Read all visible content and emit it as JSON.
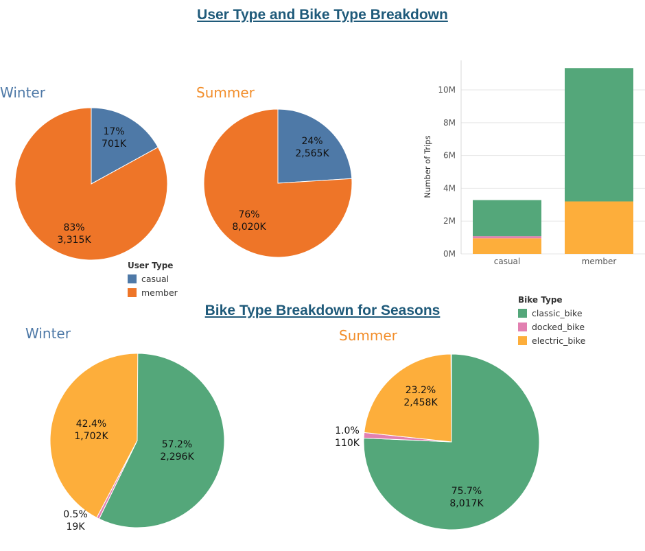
{
  "titles": {
    "main": "User Type and Bike Type Breakdown",
    "sub": "Bike Type Breakdown for Seasons"
  },
  "colors": {
    "casual": "#4e79a7",
    "member": "#ee7528",
    "classic_bike": "#54a77a",
    "docked_bike": "#e280b1",
    "electric_bike": "#fdae3b",
    "title": "#1f5a7a",
    "winter_label": "#4e79a7",
    "summer_label": "#f28e2b"
  },
  "legends": {
    "user_type": {
      "title": "User Type",
      "items": [
        "casual",
        "member"
      ]
    },
    "bike_type": {
      "title": "Bike Type",
      "items": [
        "classic_bike",
        "docked_bike",
        "electric_bike"
      ]
    }
  },
  "chart_data": [
    {
      "type": "pie",
      "title": "Winter",
      "slices": [
        {
          "name": "casual",
          "share": 0.17,
          "pct_label": "17%",
          "value_label": "701K",
          "value": 701000
        },
        {
          "name": "member",
          "share": 0.83,
          "pct_label": "83%",
          "value_label": "3,315K",
          "value": 3315000
        }
      ]
    },
    {
      "type": "pie",
      "title": "Summer",
      "slices": [
        {
          "name": "casual",
          "share": 0.24,
          "pct_label": "24%",
          "value_label": "2,565K",
          "value": 2565000
        },
        {
          "name": "member",
          "share": 0.76,
          "pct_label": "76%",
          "value_label": "8,020K",
          "value": 8020000
        }
      ]
    },
    {
      "type": "bar",
      "stacked": true,
      "categories": [
        "casual",
        "member"
      ],
      "ylabel": "Number of Trips",
      "xlabel": "",
      "ylim": [
        0,
        11800000
      ],
      "y_ticks": [
        0,
        2000000,
        4000000,
        6000000,
        8000000,
        10000000
      ],
      "y_tick_labels": [
        "0M",
        "2M",
        "4M",
        "6M",
        "8M",
        "10M"
      ],
      "series": [
        {
          "name": "electric_bike",
          "values": [
            950000,
            3200000
          ]
        },
        {
          "name": "docked_bike",
          "values": [
            130000,
            0
          ]
        },
        {
          "name": "classic_bike",
          "values": [
            2200000,
            8130000
          ]
        }
      ],
      "grid": true
    },
    {
      "type": "pie",
      "title": "Winter",
      "slices": [
        {
          "name": "classic_bike",
          "share": 0.572,
          "pct_label": "57.2%",
          "value_label": "2,296K",
          "value": 2296000
        },
        {
          "name": "docked_bike",
          "share": 0.005,
          "pct_label": "0.5%",
          "value_label": "19K",
          "value": 19000
        },
        {
          "name": "electric_bike",
          "share": 0.424,
          "pct_label": "42.4%",
          "value_label": "1,702K",
          "value": 1702000
        }
      ]
    },
    {
      "type": "pie",
      "title": "Summer",
      "slices": [
        {
          "name": "classic_bike",
          "share": 0.757,
          "pct_label": "75.7%",
          "value_label": "8,017K",
          "value": 8017000
        },
        {
          "name": "docked_bike",
          "share": 0.01,
          "pct_label": "1.0%",
          "value_label": "110K",
          "value": 110000
        },
        {
          "name": "electric_bike",
          "share": 0.232,
          "pct_label": "23.2%",
          "value_label": "2,458K",
          "value": 2458000
        }
      ]
    }
  ]
}
